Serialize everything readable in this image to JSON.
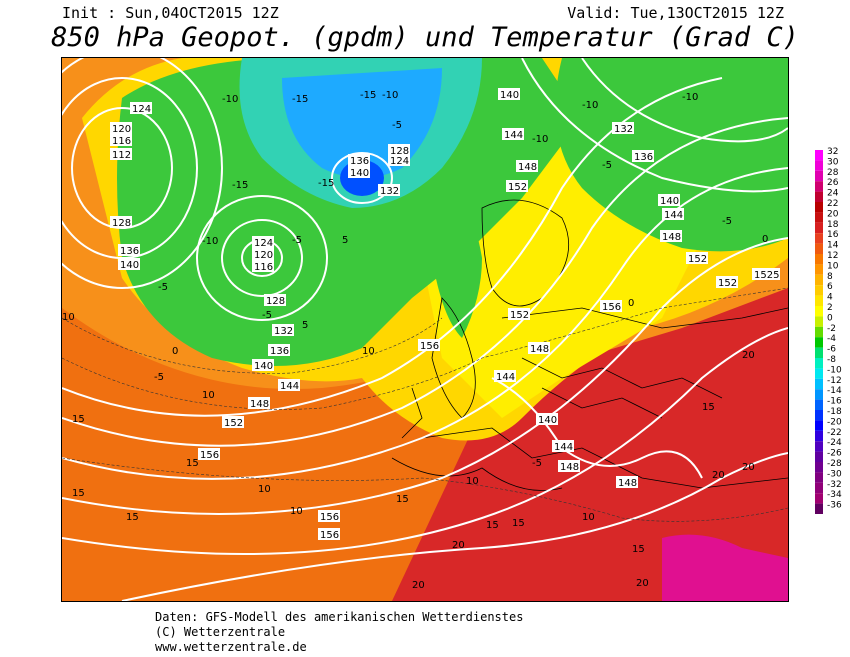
{
  "header": {
    "init": "Init : Sun,04OCT2015 12Z",
    "valid": "Valid: Tue,13OCT2015 12Z",
    "title": "850 hPa Geopot. (gpdm) und Temperatur (Grad C)"
  },
  "footer": {
    "line1": "Daten: GFS-Modell des amerikanischen Wetterdienstes",
    "line2": "(C) Wetterzentrale",
    "line3": "www.wetterzentrale.de"
  },
  "legend": {
    "items": [
      {
        "value": "32",
        "color": "#ff00ff"
      },
      {
        "value": "30",
        "color": "#f000d8"
      },
      {
        "value": "28",
        "color": "#e000b0"
      },
      {
        "value": "26",
        "color": "#d00070"
      },
      {
        "value": "24",
        "color": "#c00030"
      },
      {
        "value": "22",
        "color": "#b80000"
      },
      {
        "value": "20",
        "color": "#c81010"
      },
      {
        "value": "18",
        "color": "#d82020"
      },
      {
        "value": "16",
        "color": "#e84020"
      },
      {
        "value": "14",
        "color": "#f05a10"
      },
      {
        "value": "12",
        "color": "#f87800"
      },
      {
        "value": "10",
        "color": "#ff9600"
      },
      {
        "value": "8",
        "color": "#ffb400"
      },
      {
        "value": "6",
        "color": "#ffcc00"
      },
      {
        "value": "4",
        "color": "#ffe600"
      },
      {
        "value": "2",
        "color": "#ffff00"
      },
      {
        "value": "0",
        "color": "#c8f000"
      },
      {
        "value": "-2",
        "color": "#64dc00"
      },
      {
        "value": "-4",
        "color": "#00c800"
      },
      {
        "value": "-6",
        "color": "#00e070"
      },
      {
        "value": "-8",
        "color": "#00f0c0"
      },
      {
        "value": "-10",
        "color": "#00e8f0"
      },
      {
        "value": "-12",
        "color": "#00c0ff"
      },
      {
        "value": "-14",
        "color": "#0096ff"
      },
      {
        "value": "-16",
        "color": "#0064ff"
      },
      {
        "value": "-18",
        "color": "#0032ff"
      },
      {
        "value": "-20",
        "color": "#0000ff"
      },
      {
        "value": "-22",
        "color": "#3000e0"
      },
      {
        "value": "-24",
        "color": "#5000c0"
      },
      {
        "value": "-26",
        "color": "#6000a0"
      },
      {
        "value": "-28",
        "color": "#700090"
      },
      {
        "value": "-30",
        "color": "#800080"
      },
      {
        "value": "-32",
        "color": "#900078"
      },
      {
        "value": "-34",
        "color": "#a00070"
      },
      {
        "value": "-36",
        "color": "#600060"
      }
    ]
  },
  "map_labels": {
    "geopotential": [
      "120",
      "124",
      "128",
      "132",
      "136",
      "140",
      "144",
      "148",
      "152",
      "156",
      "112",
      "116",
      "1525"
    ],
    "temperature": [
      "-15",
      "-10",
      "-5",
      "0",
      "5",
      "10",
      "15",
      "20"
    ]
  }
}
